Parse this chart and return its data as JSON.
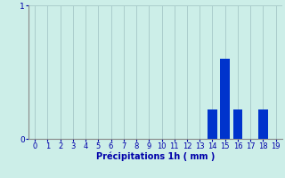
{
  "hours": [
    0,
    1,
    2,
    3,
    4,
    5,
    6,
    7,
    8,
    9,
    10,
    11,
    12,
    13,
    14,
    15,
    16,
    17,
    18,
    19
  ],
  "values": [
    0,
    0,
    0,
    0,
    0,
    0,
    0,
    0,
    0,
    0,
    0,
    0,
    0,
    0,
    0.22,
    0.6,
    0.22,
    0,
    0.22,
    0
  ],
  "bar_color": "#0033cc",
  "background_color": "#cceee8",
  "grid_color": "#aacccc",
  "axis_color": "#888888",
  "label_color": "#0000aa",
  "xlabel": "Précipitations 1h ( mm )",
  "ylim": [
    0,
    1
  ],
  "xlim": [
    -0.5,
    19.5
  ],
  "yticks": [
    0,
    1
  ],
  "xticks": [
    0,
    1,
    2,
    3,
    4,
    5,
    6,
    7,
    8,
    9,
    10,
    11,
    12,
    13,
    14,
    15,
    16,
    17,
    18,
    19
  ],
  "xlabel_fontsize": 7,
  "tick_fontsize": 6,
  "ytick_fontsize": 6.5,
  "bar_width": 0.75
}
